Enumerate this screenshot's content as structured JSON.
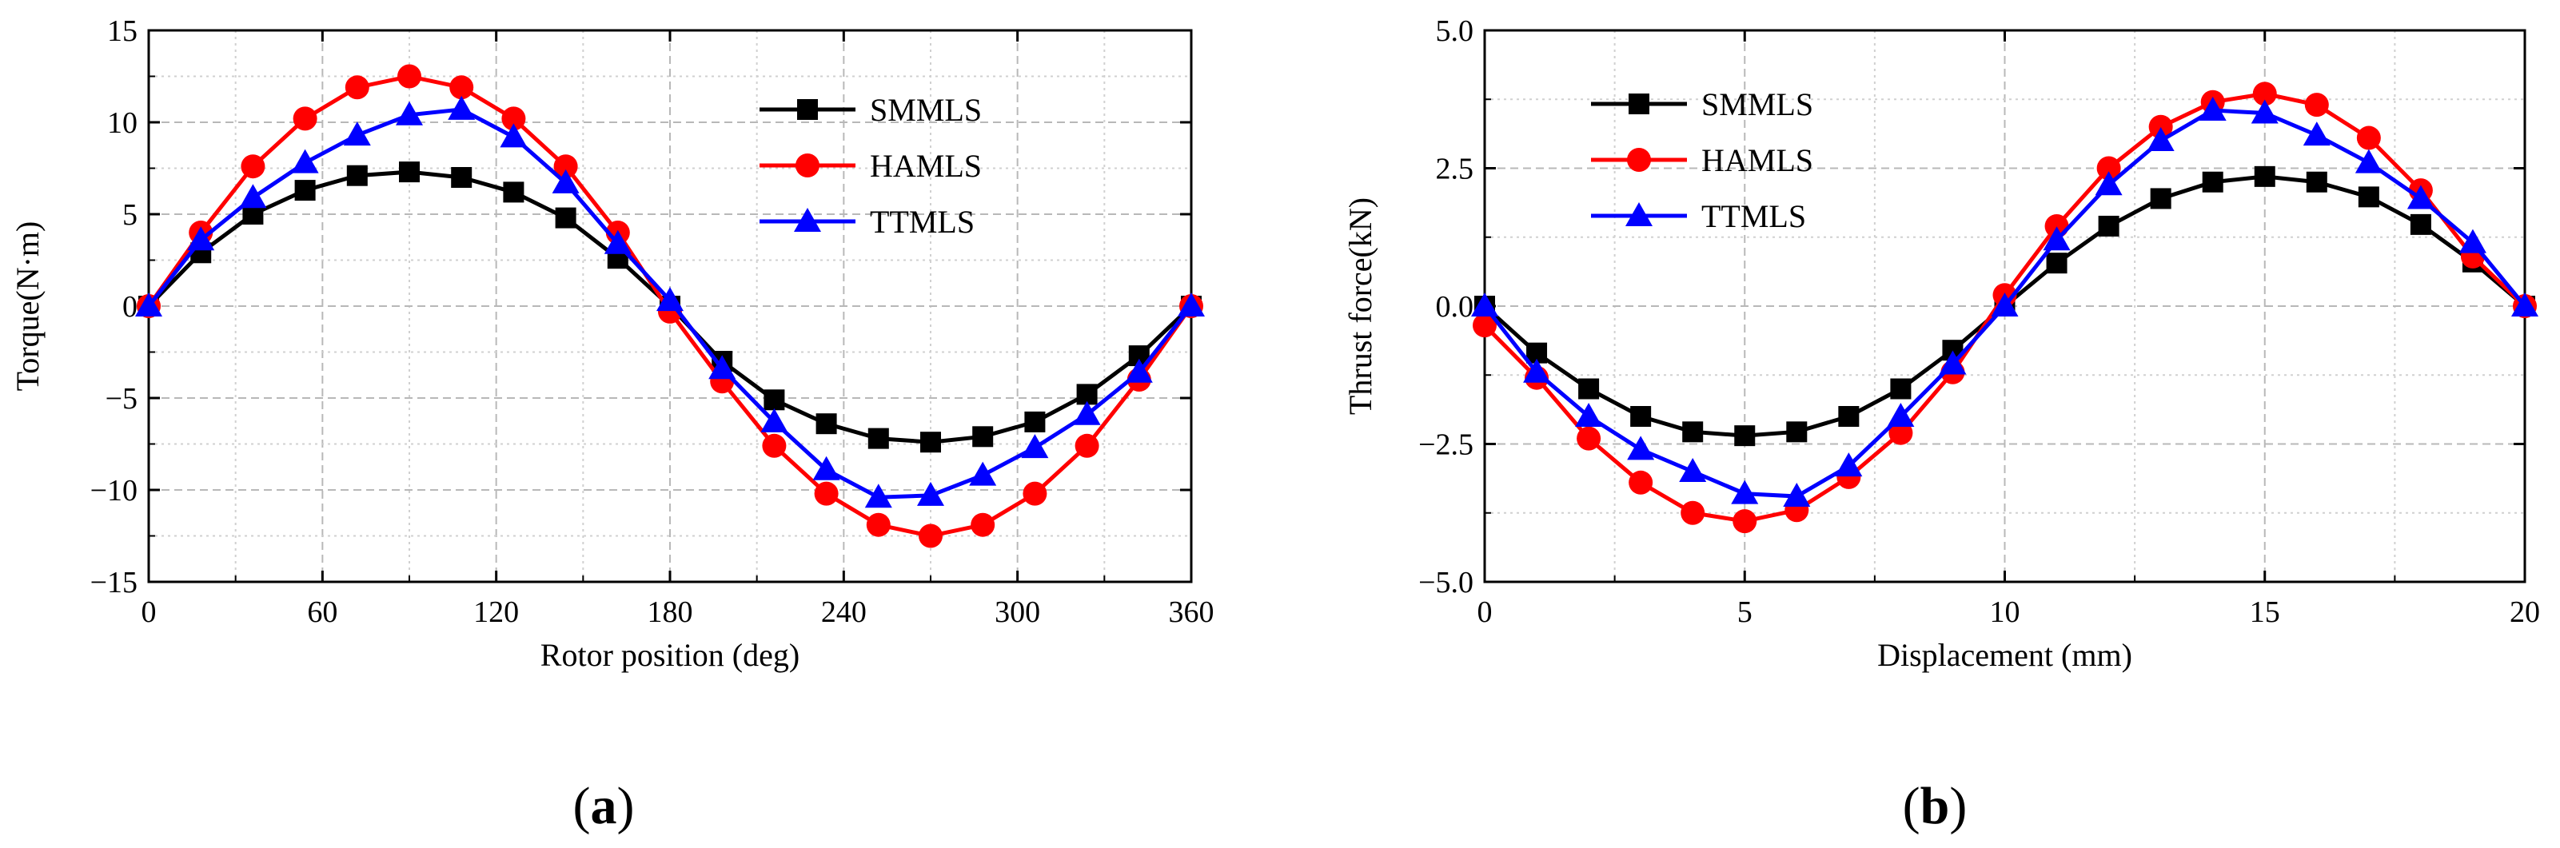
{
  "chart_data": [
    {
      "id": "a",
      "type": "line",
      "panel_label": {
        "open": "(",
        "letter": "a",
        "close": ")"
      },
      "xlabel": "Rotor position (deg)",
      "ylabel": "Torque(N·m)",
      "xlim": [
        0,
        360
      ],
      "ylim": [
        -15,
        15
      ],
      "xticks": [
        0,
        60,
        120,
        180,
        240,
        300,
        360
      ],
      "yticks": [
        -15,
        -10,
        -5,
        0,
        5,
        10,
        15
      ],
      "xtick_labels": [
        "0",
        "60",
        "120",
        "180",
        "240",
        "300",
        "360"
      ],
      "ytick_labels": [
        "−15",
        "−10",
        "−5",
        "0",
        "5",
        "10",
        "15"
      ],
      "grid": true,
      "legend_position": "top-right",
      "x": [
        0,
        18,
        36,
        54,
        72,
        90,
        108,
        126,
        144,
        162,
        180,
        198,
        216,
        234,
        252,
        270,
        288,
        306,
        324,
        342,
        360
      ],
      "series": [
        {
          "name": "SMMLS",
          "color": "#000000",
          "marker": "square",
          "values": [
            0,
            2.9,
            5.0,
            6.3,
            7.1,
            7.3,
            7.0,
            6.2,
            4.8,
            2.6,
            0,
            -3.0,
            -5.1,
            -6.4,
            -7.2,
            -7.4,
            -7.1,
            -6.3,
            -4.8,
            -2.7,
            0
          ]
        },
        {
          "name": "HAMLS",
          "color": "#ff0000",
          "marker": "circle",
          "values": [
            0,
            4.0,
            7.6,
            10.2,
            11.9,
            12.5,
            11.9,
            10.2,
            7.6,
            4.0,
            -0.3,
            -4.1,
            -7.6,
            -10.2,
            -11.9,
            -12.5,
            -11.9,
            -10.2,
            -7.6,
            -4.0,
            0
          ]
        },
        {
          "name": "TTMLS",
          "color": "#0000ff",
          "marker": "triangle",
          "values": [
            0,
            3.6,
            5.9,
            7.8,
            9.3,
            10.4,
            10.7,
            9.2,
            6.7,
            3.4,
            0.3,
            -3.4,
            -6.3,
            -8.9,
            -10.4,
            -10.3,
            -9.2,
            -7.7,
            -5.9,
            -3.6,
            0
          ]
        }
      ]
    },
    {
      "id": "b",
      "type": "line",
      "panel_label": {
        "open": "(",
        "letter": "b",
        "close": ")"
      },
      "xlabel": "Displacement (mm)",
      "ylabel": "Thrust force(kN)",
      "xlim": [
        0,
        20
      ],
      "ylim": [
        -5,
        5
      ],
      "xticks": [
        0,
        5,
        10,
        15,
        20
      ],
      "yticks": [
        -5,
        -2.5,
        0,
        2.5,
        5
      ],
      "xtick_labels": [
        "0",
        "5",
        "10",
        "15",
        "20"
      ],
      "ytick_labels": [
        "−5.0",
        "−2.5",
        "0.0",
        "2.5",
        "5.0"
      ],
      "grid": true,
      "legend_position": "top-left",
      "x": [
        0,
        1,
        2,
        3,
        4,
        5,
        6,
        7,
        8,
        9,
        10,
        11,
        12,
        13,
        14,
        15,
        16,
        17,
        18,
        19,
        20
      ],
      "series": [
        {
          "name": "SMMLS",
          "color": "#000000",
          "marker": "square",
          "values": [
            0,
            -0.85,
            -1.5,
            -2.0,
            -2.28,
            -2.35,
            -2.28,
            -2.0,
            -1.5,
            -0.8,
            0,
            0.78,
            1.45,
            1.95,
            2.25,
            2.35,
            2.25,
            1.98,
            1.48,
            0.8,
            0
          ]
        },
        {
          "name": "HAMLS",
          "color": "#ff0000",
          "marker": "circle",
          "values": [
            -0.35,
            -1.3,
            -2.4,
            -3.2,
            -3.75,
            -3.9,
            -3.7,
            -3.1,
            -2.3,
            -1.2,
            0.2,
            1.45,
            2.5,
            3.25,
            3.7,
            3.85,
            3.65,
            3.05,
            2.1,
            0.9,
            0
          ]
        },
        {
          "name": "TTMLS",
          "color": "#0000ff",
          "marker": "triangle",
          "values": [
            0,
            -1.2,
            -2.0,
            -2.6,
            -3.0,
            -3.4,
            -3.45,
            -2.9,
            -2.0,
            -1.05,
            0,
            1.2,
            2.2,
            3.0,
            3.55,
            3.5,
            3.1,
            2.6,
            1.95,
            1.15,
            0
          ]
        }
      ]
    }
  ]
}
